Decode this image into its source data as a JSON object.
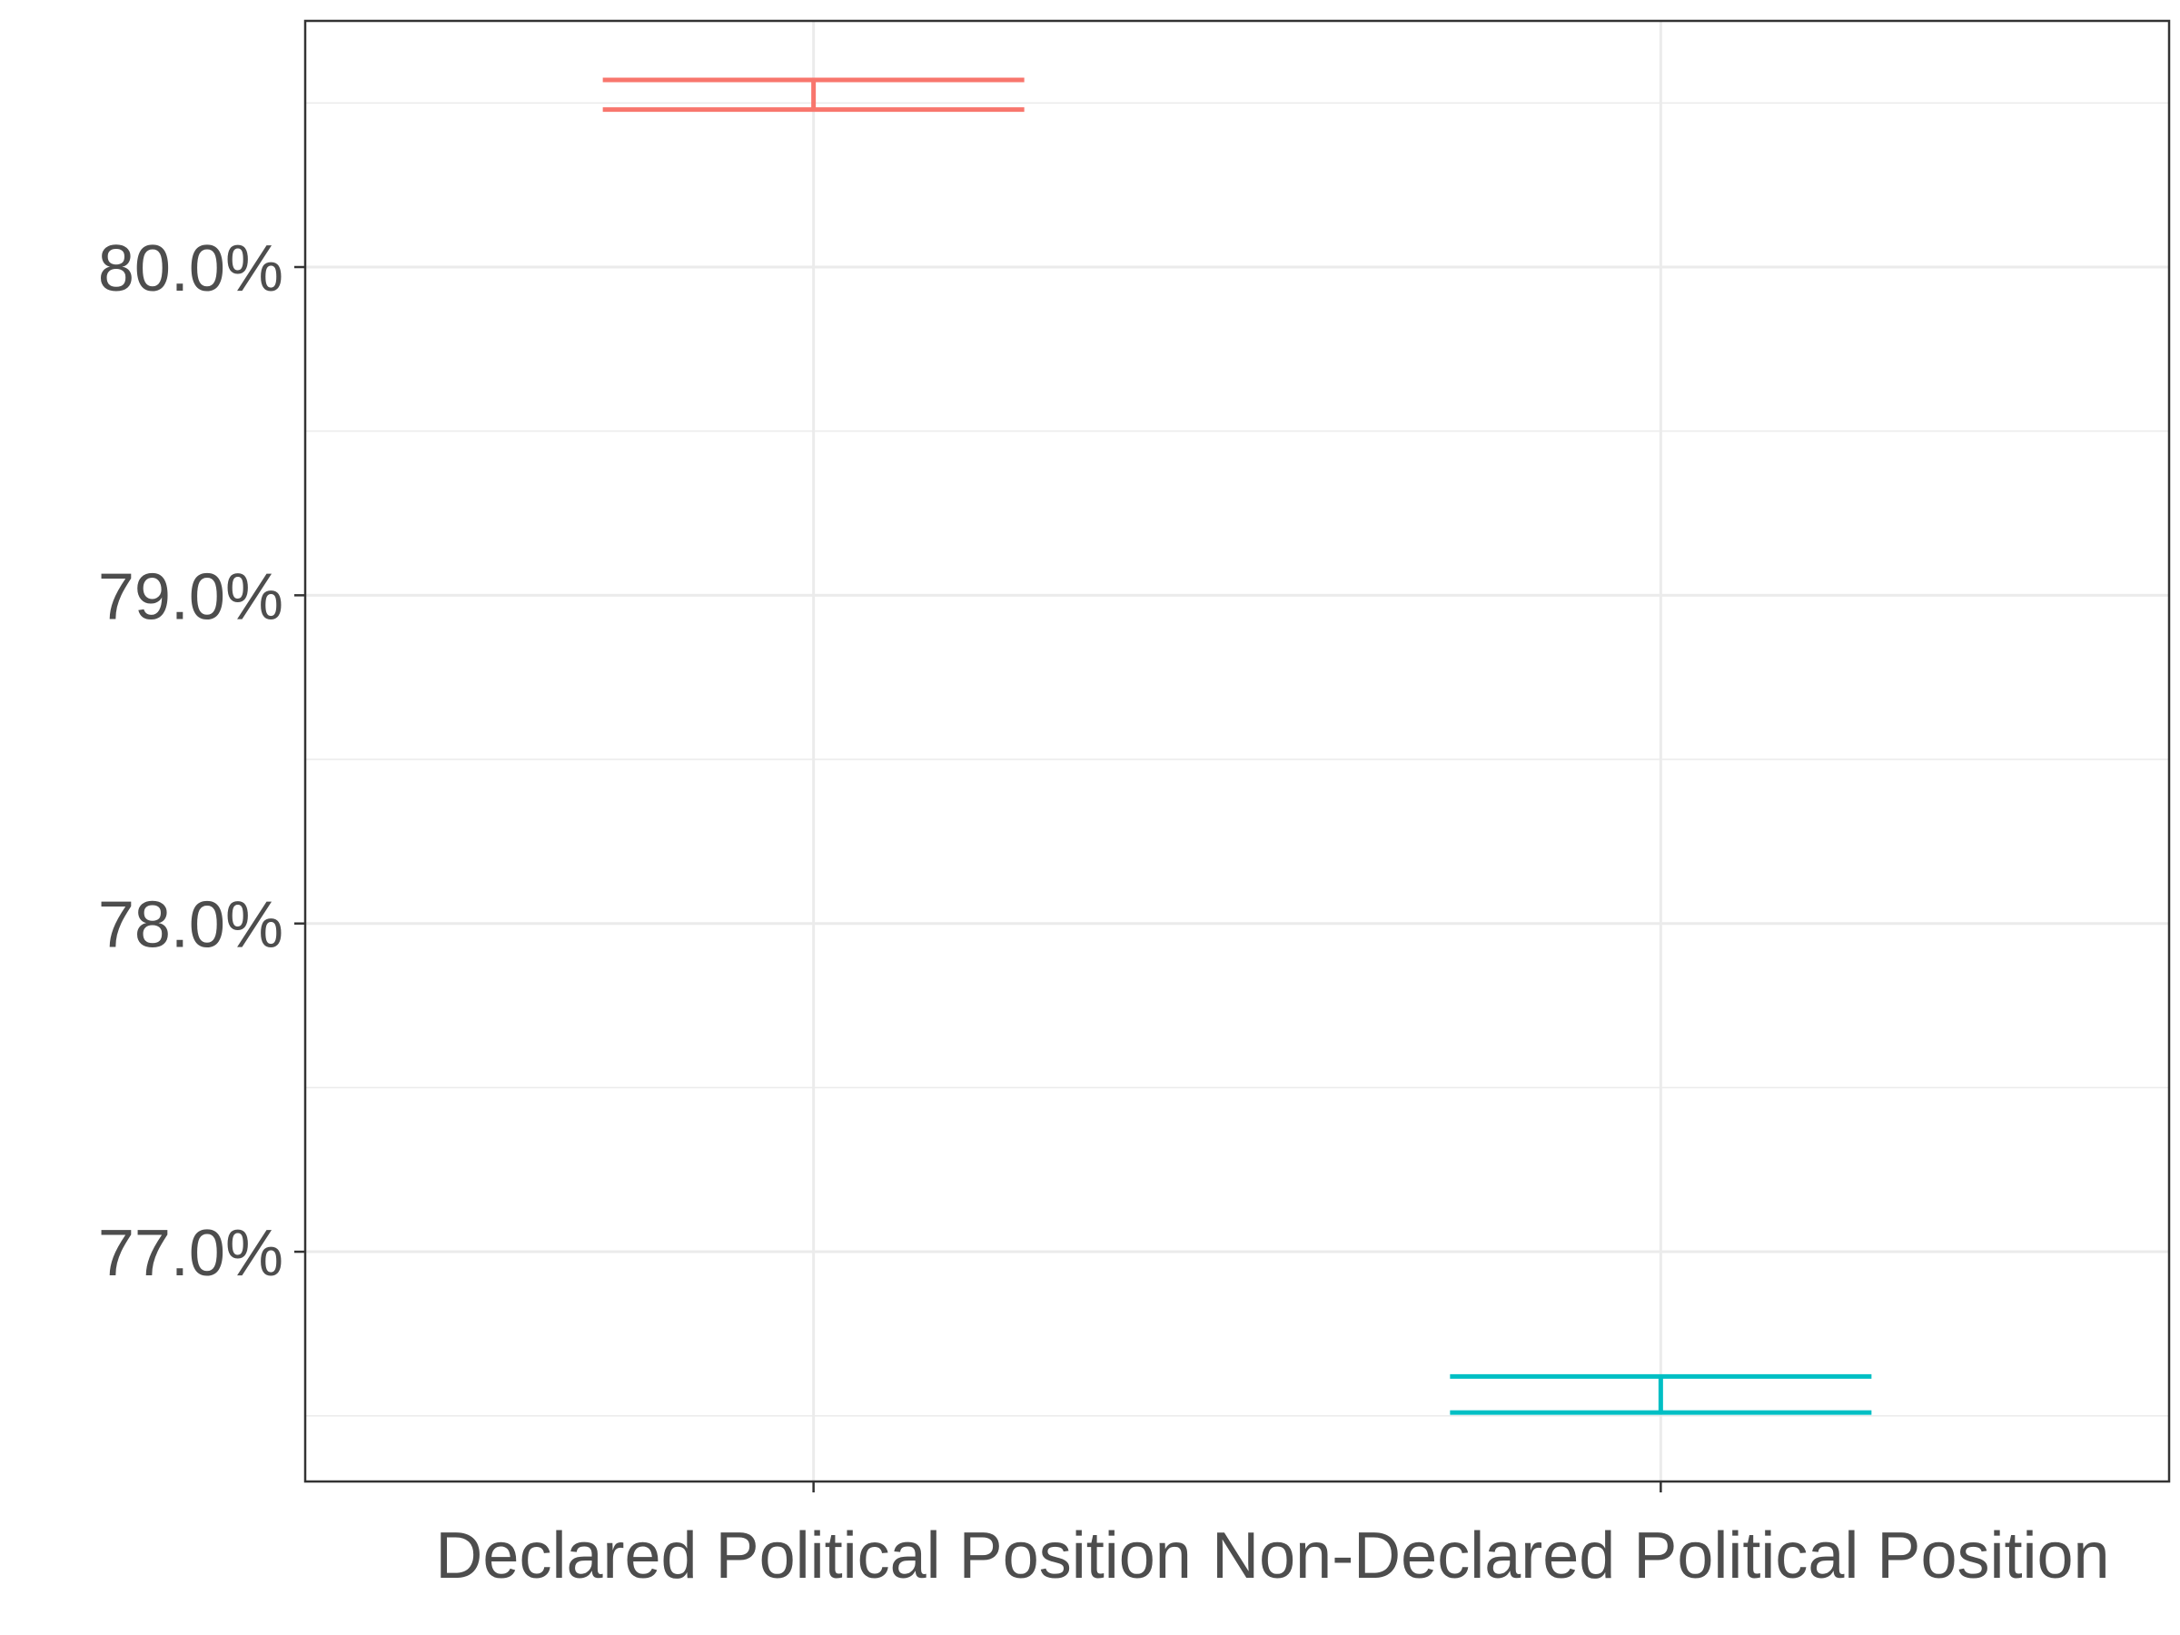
{
  "chart_data": {
    "type": "errorbar",
    "categories": [
      "Declared Political Position",
      "Non-Declared Political Position"
    ],
    "series": [
      {
        "lower": 80.48,
        "upper": 80.57,
        "color": "#F8766D"
      },
      {
        "lower": 76.51,
        "upper": 76.62,
        "color": "#00BFC4"
      }
    ],
    "title": "",
    "xlabel": "",
    "ylabel": "",
    "ylim": [
      76.3,
      80.75
    ],
    "y_ticks": [
      77.0,
      78.0,
      79.0,
      80.0
    ],
    "y_tick_labels": [
      "77.0%",
      "78.0%",
      "79.0%",
      "80.0%"
    ],
    "grid": true,
    "legend": "none"
  }
}
